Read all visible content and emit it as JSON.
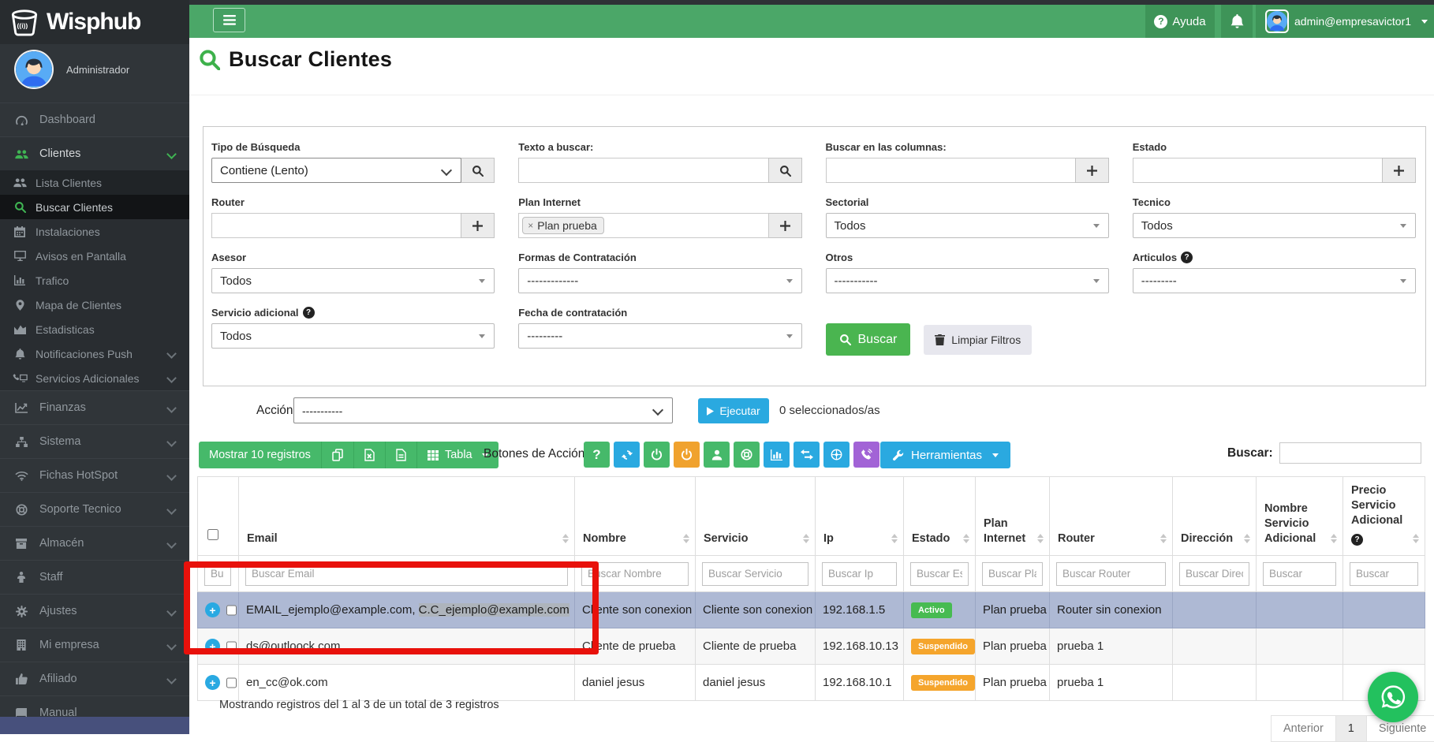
{
  "topbar": {
    "help_label": "Ayuda",
    "username": "admin@empresavictor1"
  },
  "sidebar": {
    "brand": "Wisphub",
    "role": "Administrador",
    "items": [
      {
        "label": "Dashboard",
        "icon": "gauge",
        "kind": "main"
      },
      {
        "label": "Clientes",
        "icon": "users",
        "kind": "main",
        "accent": true,
        "chevron": true
      },
      {
        "label": "Lista Clientes",
        "icon": "users",
        "kind": "sub",
        "shade": true
      },
      {
        "label": "Buscar Clientes",
        "icon": "search",
        "kind": "sub",
        "active": true
      },
      {
        "label": "Instalaciones",
        "icon": "calendar",
        "kind": "sub"
      },
      {
        "label": "Avisos en Pantalla",
        "icon": "monitor",
        "kind": "sub"
      },
      {
        "label": "Trafico",
        "icon": "chart-bars",
        "kind": "sub"
      },
      {
        "label": "Mapa de Clientes",
        "icon": "map-marker",
        "kind": "sub"
      },
      {
        "label": "Estadisticas",
        "icon": "chart-area",
        "kind": "sub"
      },
      {
        "label": "Notificaciones Push",
        "icon": "bell",
        "kind": "sub",
        "chevron": true
      },
      {
        "label": "Servicios Adicionales",
        "icon": "phone-monitor",
        "kind": "sub",
        "chevron": true
      },
      {
        "label": "Finanzas",
        "icon": "chart-line",
        "kind": "main",
        "chevron": true
      },
      {
        "label": "Sistema",
        "icon": "sitemap",
        "kind": "main",
        "chevron": true
      },
      {
        "label": "Fichas HotSpot",
        "icon": "wifi",
        "kind": "main",
        "chevron": true
      },
      {
        "label": "Soporte Tecnico",
        "icon": "life-ring",
        "kind": "main",
        "chevron": true
      },
      {
        "label": "Almacén",
        "icon": "archive-box",
        "kind": "main",
        "chevron": true
      },
      {
        "label": "Staff",
        "icon": "person",
        "kind": "main"
      },
      {
        "label": "Ajustes",
        "icon": "gear",
        "kind": "main",
        "chevron": true
      },
      {
        "label": "Mi empresa",
        "icon": "building",
        "kind": "main",
        "chevron": true
      },
      {
        "label": "Afiliado",
        "icon": "thumbs-up",
        "kind": "main",
        "chevron": true
      },
      {
        "label": "Manual",
        "icon": "book",
        "kind": "main"
      }
    ]
  },
  "page": {
    "title": "Buscar Clientes"
  },
  "filters": {
    "fields": [
      {
        "label": "Tipo de Búsqueda",
        "type": "select",
        "value": "Contiene (Lento)",
        "addon": "search"
      },
      {
        "label": "Texto a buscar:",
        "type": "input",
        "value": "",
        "addon": "search"
      },
      {
        "label": "Buscar en las columnas:",
        "type": "input",
        "value": "",
        "addon": "plus"
      },
      {
        "label": "Estado",
        "type": "input",
        "value": "",
        "addon": "plus"
      },
      {
        "label": "Router",
        "type": "input",
        "value": "",
        "addon": "plus"
      },
      {
        "label": "Plan Internet",
        "type": "tags",
        "chips": [
          "Plan prueba"
        ],
        "addon": "plus"
      },
      {
        "label": "Sectorial",
        "type": "select2",
        "value": "Todos"
      },
      {
        "label": "Tecnico",
        "type": "select2",
        "value": "Todos"
      },
      {
        "label": "Asesor",
        "type": "select2",
        "value": "Todos"
      },
      {
        "label": "Formas de Contratación",
        "type": "select2",
        "value": "-------------"
      },
      {
        "label": "Otros",
        "type": "select2",
        "value": "-----------"
      },
      {
        "label": "Articulos",
        "help": true,
        "type": "select2",
        "value": "---------"
      },
      {
        "label": "Servicio adicional",
        "help": true,
        "type": "select2",
        "value": "Todos"
      },
      {
        "label": "Fecha de contratación",
        "type": "select2",
        "value": "---------"
      }
    ],
    "buscar_button": "Buscar",
    "limpiar_button": "Limpiar Filtros"
  },
  "action_bar": {
    "label": "Acción:",
    "select_value": "-----------",
    "execute_label": "Ejecutar",
    "selected_text": "0 seleccionados/as"
  },
  "table_toolbar": {
    "show_label": "Mostrar 10 registros",
    "export_buttons": [
      {
        "icon": "copy"
      },
      {
        "icon": "file-excel"
      },
      {
        "icon": "file-lines"
      }
    ],
    "tabla_label": "Tabla",
    "botones_label": "Botones de Acción:",
    "action_buttons": [
      {
        "icon": "question",
        "color": "green"
      },
      {
        "icon": "refresh",
        "color": "blue"
      },
      {
        "icon": "power",
        "color": "green"
      },
      {
        "icon": "power",
        "color": "orange"
      },
      {
        "icon": "user",
        "color": "green"
      },
      {
        "icon": "life-ring",
        "color": "green"
      },
      {
        "icon": "bar-chart",
        "color": "blue"
      },
      {
        "icon": "arrows-h",
        "color": "blue"
      },
      {
        "icon": "globe-marker",
        "color": "blue"
      },
      {
        "icon": "phone-signal",
        "color": "purple"
      }
    ],
    "herramientas_label": "Herramientas",
    "buscar_label": "Buscar:"
  },
  "table": {
    "columns": [
      {
        "label": "",
        "checkbox": true
      },
      {
        "label": "Email",
        "sortable": true
      },
      {
        "label": "Nombre",
        "sortable": true
      },
      {
        "label": "Servicio",
        "sortable": true
      },
      {
        "label": "Ip",
        "sortable": true
      },
      {
        "label": "Estado",
        "sortable": true
      },
      {
        "label": "Plan Internet",
        "sortable": true
      },
      {
        "label": "Router",
        "sortable": true
      },
      {
        "label": "Dirección",
        "sortable": true
      },
      {
        "label": "Nombre Servicio Adicional",
        "sortable": true
      },
      {
        "label": "Precio Servicio Adicional",
        "help": true,
        "sortable": true
      }
    ],
    "filter_placeholders": [
      "Bu",
      "Buscar Email",
      "Buscar Nombre",
      "Buscar Servicio",
      "Buscar Ip",
      "Buscar Es",
      "Buscar Pla",
      "Buscar Router",
      "Buscar Direc",
      "Buscar",
      "Buscar"
    ],
    "status_colors": {
      "Activo": "#47bb51",
      "Suspendido": "#f5a52c"
    },
    "rows": [
      {
        "email_prefix": "EMAIL_ejemplo@example.com, ",
        "email_selected": "C.C_ejemplo@example.com",
        "nombre": "Cliente son conexion",
        "servicio": "Cliente son conexion",
        "ip": "192.168.1.5",
        "estado": "Activo",
        "plan_internet": "Plan prueba",
        "router": "Router sin conexion",
        "direccion": "",
        "nombre_servicio_adicional": "",
        "precio_servicio_adicional": "",
        "highlighted": true
      },
      {
        "email_prefix": "ds@outloock.com",
        "email_selected": "",
        "nombre": "Cliente de prueba",
        "servicio": "Cliente de prueba",
        "ip": "192.168.10.13",
        "estado": "Suspendido",
        "plan_internet": "Plan prueba",
        "router": "prueba 1",
        "direccion": "",
        "nombre_servicio_adicional": "",
        "precio_servicio_adicional": "",
        "highlighted": false
      },
      {
        "email_prefix": "en_cc@ok.com",
        "email_selected": "",
        "nombre": "daniel jesus",
        "servicio": "daniel jesus",
        "ip": "192.168.10.1",
        "estado": "Suspendido",
        "plan_internet": "Plan prueba",
        "router": "prueba 1",
        "direccion": "",
        "nombre_servicio_adicional": "",
        "precio_servicio_adicional": "",
        "highlighted": false
      }
    ]
  },
  "footer": {
    "info": "Mostrando registros del 1 al 3 de un total de 3 registros",
    "pagination": {
      "prev": "Anterior",
      "page": "1",
      "next": "Siguiente"
    }
  },
  "colors": {
    "topbar_green": "#4ba768",
    "toolbar_green": "#46b96a",
    "accent_blue": "#2aa9e0",
    "accent_orange": "#f0a22e",
    "accent_purple": "#a263d6",
    "row_highlight": "#aeb9d4",
    "badge_active": "#47bb51",
    "badge_suspended": "#f5a52c",
    "annotation_red": "#e8110b",
    "whatsapp_green": "#23c15e"
  }
}
